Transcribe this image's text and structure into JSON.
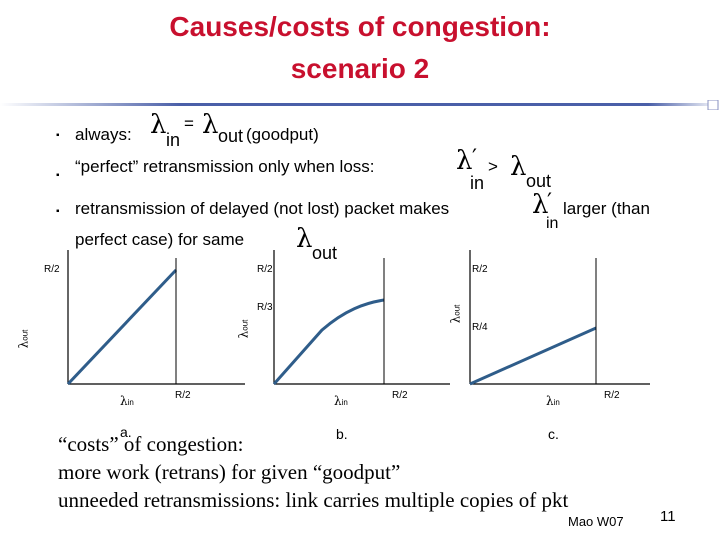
{
  "slide": {
    "title_line1": "Causes/costs of congestion:",
    "title_line2": "scenario 2",
    "bullets": {
      "b1_prefix": "always:",
      "lambda": "λ",
      "sub_in": "in",
      "eq": "=",
      "sub_out": "out",
      "b1_suffix": "(goodput)",
      "b2_text": "“perfect” retransmission only when loss:",
      "prime": "′",
      "gt": ">",
      "b3_text": "retransmission of delayed (not lost) packet makes",
      "b3_suffix": "larger (than",
      "b3_line2": "perfect case) for same"
    },
    "bullet_marker": "▪",
    "graphs": {
      "a": {
        "ytick": "R/2",
        "xtick": "R/2",
        "ylabel": "λ",
        "ylabel_sub": "out",
        "xlabel": "λ",
        "xlabel_sub": "in",
        "letter": "a."
      },
      "b": {
        "ytick_top": "R/2",
        "ytick_mid": "R/3",
        "xtick": "R/2",
        "ylabel": "λ",
        "ylabel_sub": "out",
        "xlabel": "λ",
        "xlabel_sub": "in",
        "letter": "b."
      },
      "c": {
        "ytick_top": "R/2",
        "ytick_mid": "R/4",
        "xtick": "R/2",
        "ylabel": "λ",
        "ylabel_sub": "out",
        "xlabel": "λ",
        "xlabel_sub": "in",
        "letter": "c."
      }
    },
    "costs": {
      "line1": "“costs” of congestion:",
      "line2": "more work (retrans) for given “goodput”",
      "line3": "unneeded retransmissions: link carries multiple copies of pkt"
    },
    "footer": {
      "author": "Mao W07",
      "page": "11"
    },
    "colors": {
      "title": "#c8102e",
      "rule": "#4a5fa8"
    }
  }
}
